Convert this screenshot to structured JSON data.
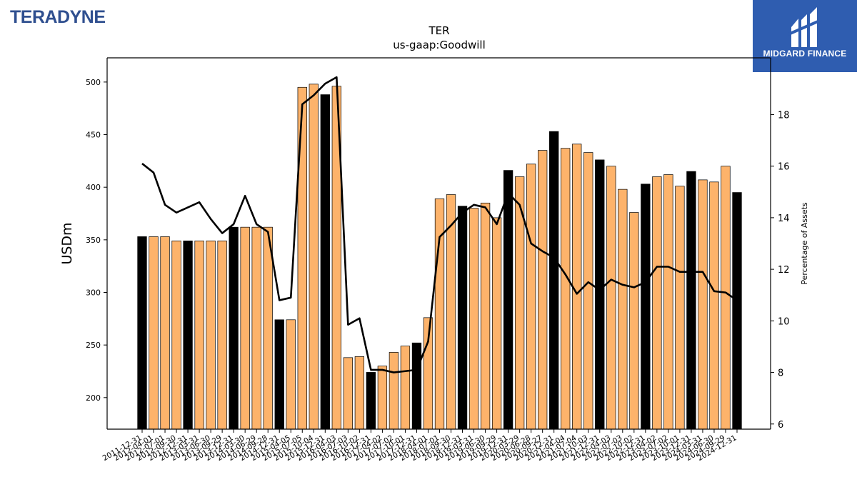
{
  "branding": {
    "company_logo_text": "TERADYNE",
    "partner_logo_text": "MIDGARD FINANCE"
  },
  "colors": {
    "bar_default": "#fdb36b",
    "bar_annual": "#000000",
    "line": "#000000",
    "badge": "#2f5db0",
    "logo_text": "#2f4f8f"
  },
  "chart_data": {
    "type": "bar",
    "title": "TER",
    "subtitle": "us-gaap:Goodwill",
    "ylabel": "USDm",
    "y2label": "Percentage of Assets",
    "ylim": [
      170,
      523
    ],
    "y2lim": [
      5.8,
      20.2
    ],
    "yticks": [
      200,
      250,
      300,
      350,
      400,
      450,
      500
    ],
    "y2ticks": [
      6,
      8,
      10,
      12,
      14,
      16,
      18
    ],
    "categories": [
      "2011-12-31",
      "2012-04-01",
      "2012-07-01",
      "2012-09-30",
      "2012-12-31",
      "2013-03-31",
      "2013-06-30",
      "2013-09-29",
      "2013-12-31",
      "2014-03-30",
      "2014-06-29",
      "2014-09-28",
      "2014-12-31",
      "2015-04-05",
      "2015-07-05",
      "2015-10-04",
      "2015-12-31",
      "2016-04-03",
      "2016-07-03",
      "2016-10-02",
      "2016-12-31",
      "2017-04-02",
      "2017-07-02",
      "2017-10-01",
      "2017-12-31",
      "2018-04-01",
      "2018-07-01",
      "2018-09-30",
      "2018-12-31",
      "2019-03-31",
      "2019-06-30",
      "2019-09-29",
      "2019-12-31",
      "2020-03-29",
      "2020-06-28",
      "2020-09-27",
      "2020-12-31",
      "2021-04-04",
      "2021-07-04",
      "2021-10-03",
      "2021-12-31",
      "2022-04-03",
      "2022-07-03",
      "2022-10-02",
      "2022-12-31",
      "2023-04-02",
      "2023-07-02",
      "2023-10-01",
      "2023-12-31",
      "2024-03-31",
      "2024-06-30",
      "2024-09-29",
      "2024-12-31"
    ],
    "series": [
      {
        "type": "bar",
        "values": [
          353,
          353,
          353,
          349,
          349,
          349,
          349,
          349,
          362,
          362,
          362,
          362,
          274,
          274,
          495,
          498,
          488,
          496,
          238,
          239,
          224,
          230,
          243,
          249,
          252,
          276,
          389,
          393,
          382,
          380,
          385,
          371,
          416,
          410,
          422,
          435,
          453,
          437,
          441,
          433,
          426,
          420,
          398,
          376,
          403,
          410,
          412,
          401,
          415,
          407,
          405,
          420,
          395
        ],
        "annual_flags": [
          1,
          0,
          0,
          0,
          1,
          0,
          0,
          0,
          1,
          0,
          0,
          0,
          1,
          0,
          0,
          0,
          1,
          0,
          0,
          0,
          1,
          0,
          0,
          0,
          1,
          0,
          0,
          0,
          1,
          0,
          0,
          0,
          1,
          0,
          0,
          0,
          1,
          0,
          0,
          0,
          1,
          0,
          0,
          0,
          1,
          0,
          0,
          0,
          1,
          0,
          0,
          0,
          1
        ]
      },
      {
        "type": "line",
        "axis": "right",
        "values": [
          16.1,
          15.75,
          14.5,
          14.2,
          14.4,
          14.6,
          13.95,
          13.4,
          13.75,
          14.85,
          13.75,
          13.45,
          10.8,
          10.9,
          18.4,
          18.75,
          19.2,
          19.45,
          9.85,
          10.1,
          8.1,
          8.1,
          8.0,
          8.05,
          8.1,
          9.2,
          13.25,
          13.7,
          14.2,
          14.5,
          14.4,
          13.75,
          14.95,
          14.5,
          13.0,
          12.7,
          12.45,
          11.8,
          11.05,
          11.5,
          11.2,
          11.6,
          11.4,
          11.3,
          11.5,
          12.1,
          12.1,
          11.9,
          11.9,
          11.9,
          11.15,
          11.1,
          10.8
        ]
      }
    ]
  }
}
